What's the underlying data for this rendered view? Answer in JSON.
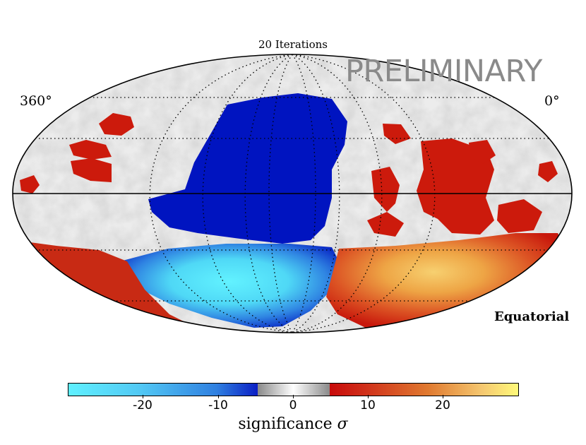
{
  "title": "20 Iterations",
  "watermark": "PRELIMINARY",
  "longitude_labels": {
    "left": "360°",
    "right": "0°"
  },
  "coordinate_system": "Equatorial",
  "colorbar": {
    "caption_text": "significance",
    "caption_symbol": "σ",
    "ticks": [
      "-20",
      "-10",
      "0",
      "10",
      "20"
    ],
    "range": [
      -30,
      30
    ],
    "colors": {
      "min": "#5ff0ff",
      "neg": "#0008b8",
      "zero": "#ffffff",
      "pos": "#c80a0a",
      "max": "#fff97a",
      "grey": "#8a8a8a"
    }
  },
  "regions": [
    {
      "name": "northern-deficit",
      "sign": "negative",
      "significance": "-6 to -8"
    },
    {
      "name": "southern-deficit",
      "sign": "negative",
      "significance": "down to -28"
    },
    {
      "name": "southern-excess",
      "sign": "positive",
      "significance": "up to 24"
    },
    {
      "name": "eastern-excess",
      "sign": "positive",
      "significance": "6 to 10"
    }
  ],
  "grid": true
}
